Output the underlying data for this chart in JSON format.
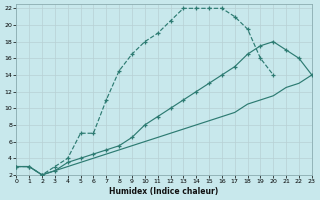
{
  "background_color": "#c8e8ec",
  "grid_color": "#b0cdd4",
  "line_color": "#2d7b72",
  "xlabel": "Humidex (Indice chaleur)",
  "xlim": [
    0,
    23
  ],
  "ylim": [
    2,
    22.5
  ],
  "xticks": [
    0,
    1,
    2,
    3,
    4,
    5,
    6,
    7,
    8,
    9,
    10,
    11,
    12,
    13,
    14,
    15,
    16,
    17,
    18,
    19,
    20,
    21,
    22,
    23
  ],
  "yticks": [
    2,
    4,
    6,
    8,
    10,
    12,
    14,
    16,
    18,
    20,
    22
  ],
  "curves": [
    {
      "x": [
        0,
        1,
        2,
        3,
        4,
        5,
        6,
        7,
        8,
        9,
        10,
        11,
        12,
        13,
        14,
        15,
        16,
        17,
        18,
        19,
        20
      ],
      "y": [
        3,
        3,
        2,
        3,
        4,
        7,
        7,
        11,
        14.5,
        16.5,
        18,
        19,
        20.5,
        22,
        22,
        22,
        22,
        21,
        19.5,
        16,
        14
      ],
      "linestyle": "--",
      "marker": true
    },
    {
      "x": [
        0,
        1,
        2,
        3,
        4,
        5,
        6,
        7,
        8,
        9,
        10,
        11,
        12,
        13,
        14,
        15,
        16,
        17,
        18,
        19,
        20,
        21,
        22,
        23
      ],
      "y": [
        3,
        3,
        2,
        2.5,
        3.5,
        4,
        4.5,
        5,
        5.5,
        6.5,
        8,
        9,
        10,
        11,
        12,
        13,
        14,
        15,
        16.5,
        17.5,
        18,
        17,
        16,
        14
      ],
      "linestyle": "-",
      "marker": true
    },
    {
      "x": [
        0,
        1,
        2,
        3,
        4,
        5,
        6,
        7,
        8,
        9,
        10,
        11,
        12,
        13,
        14,
        15,
        16,
        17,
        18,
        19,
        20,
        21,
        22,
        23
      ],
      "y": [
        3,
        3,
        2,
        2.5,
        3,
        3.5,
        4,
        4.5,
        5,
        5.5,
        6,
        6.5,
        7,
        7.5,
        8,
        8.5,
        9,
        9.5,
        10.5,
        11,
        11.5,
        12.5,
        13,
        14
      ],
      "linestyle": "-",
      "marker": false
    }
  ]
}
